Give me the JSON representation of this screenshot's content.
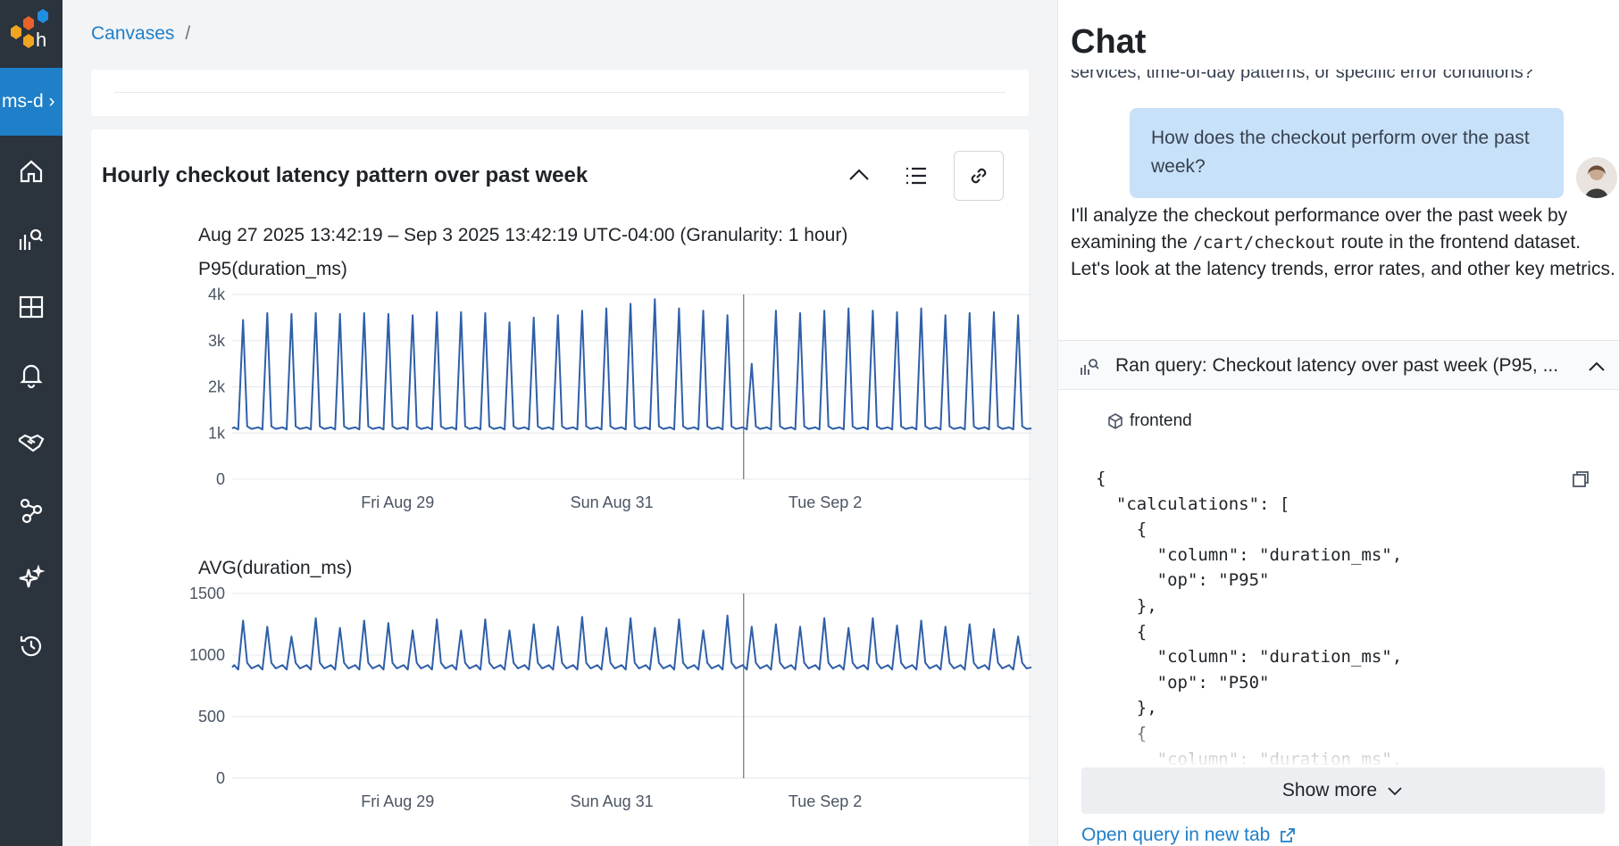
{
  "nav": {
    "env_label": "ms-d ›",
    "items": [
      "home-icon",
      "query-icon",
      "boards-icon",
      "triggers-icon",
      "slo-icon",
      "service-map-icon",
      "ai-icon",
      "history-icon"
    ]
  },
  "breadcrumb": {
    "root": "Canvases",
    "separator": "/"
  },
  "card": {
    "title": "Hourly checkout latency pattern over past week",
    "timeframe": "Aug 27 2025 13:42:19 – Sep 3 2025 13:42:19 UTC-04:00 (Granularity: 1 hour)"
  },
  "chart_data": [
    {
      "type": "line",
      "title": "P95(duration_ms)",
      "y_ticks": [
        "4k",
        "3k",
        "2k",
        "1k",
        "0"
      ],
      "x_ticks": [
        "Fri Aug 29",
        "Sun Aug 31",
        "Tue Sep 2"
      ],
      "ylim": [
        0,
        4000
      ],
      "baseline": 1100,
      "series": [
        {
          "color": "#2f5fa8",
          "peaks": [
            3450,
            3600,
            3580,
            3600,
            3580,
            3600,
            3580,
            3550,
            3620,
            3620,
            3600,
            3400,
            3500,
            3550,
            3650,
            3700,
            3800,
            3900,
            3700,
            3650,
            3550,
            2500,
            3650,
            3600,
            3650,
            3700,
            3650,
            3620,
            3700,
            3550,
            3600,
            3620,
            3550
          ]
        }
      ]
    },
    {
      "type": "line",
      "title": "AVG(duration_ms)",
      "y_ticks": [
        "1500",
        "1000",
        "500",
        "0"
      ],
      "x_ticks": [
        "Fri Aug 29",
        "Sun Aug 31",
        "Tue Sep 2"
      ],
      "ylim": [
        0,
        1500
      ],
      "baseline": 900,
      "series": [
        {
          "color": "#2f5fa8",
          "peaks": [
            1280,
            1230,
            1150,
            1300,
            1220,
            1280,
            1260,
            1200,
            1290,
            1200,
            1290,
            1200,
            1250,
            1230,
            1310,
            1220,
            1300,
            1220,
            1290,
            1200,
            1320,
            1230,
            1250,
            1230,
            1300,
            1220,
            1300,
            1240,
            1280,
            1230,
            1250,
            1210,
            1150
          ]
        }
      ]
    }
  ],
  "chat": {
    "title": "Chat",
    "cut_text": "services, time-of-day patterns, or specific error conditions?",
    "user_message": "How does the checkout perform over the past week?",
    "reply_pre": "I'll analyze the checkout performance over the past week by examining the ",
    "reply_code": "/cart/checkout",
    "reply_post": " route in the frontend dataset. Let's look at the latency trends, error rates, and other key metrics.",
    "query_title": "Ran query: Checkout latency over past week (P95, ...",
    "dataset": "frontend",
    "code": "{\n  \"calculations\": [\n    {\n      \"column\": \"duration_ms\",\n      \"op\": \"P95\"\n    },\n    {\n      \"column\": \"duration_ms\",\n      \"op\": \"P50\"\n    },\n    {\n      \"column\": \"duration_ms\",",
    "show_more": "Show more",
    "open_query": "Open query in new tab"
  }
}
